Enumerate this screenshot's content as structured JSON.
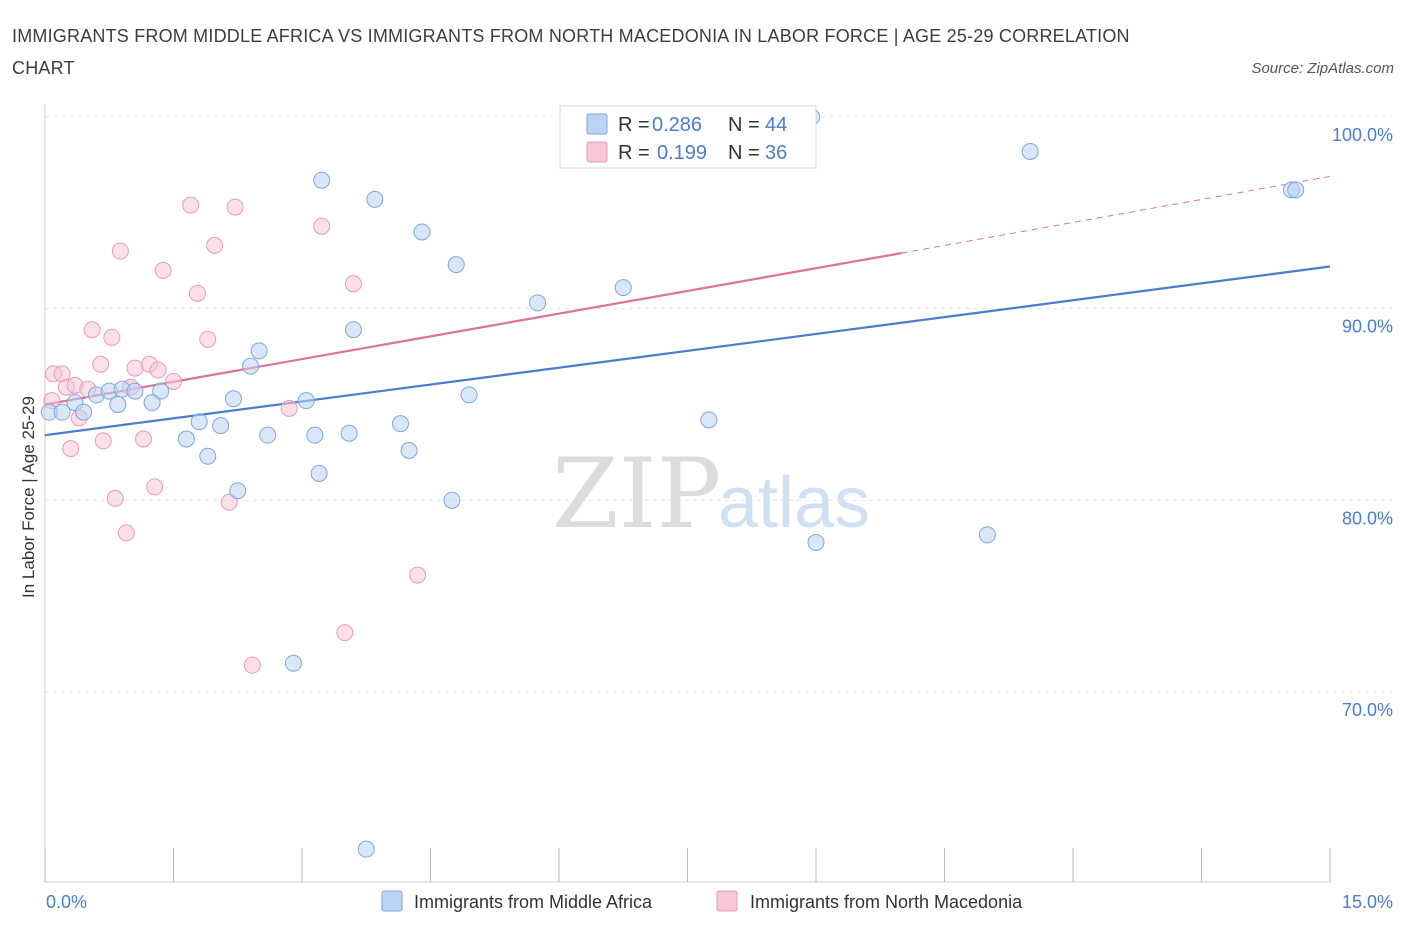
{
  "title": "IMMIGRANTS FROM MIDDLE AFRICA VS IMMIGRANTS FROM NORTH MACEDONIA IN LABOR FORCE | AGE 25-29 CORRELATION CHART",
  "source": "Source: ZipAtlas.com",
  "watermark": {
    "zip": "ZIP",
    "atlas": "atlas"
  },
  "colors": {
    "blue": "#4a7ccf",
    "blue_fill": "#bcd4f4",
    "pink": "#e0709a",
    "pink_fill": "#f7c7d6"
  },
  "legend_top": {
    "rows": [
      {
        "r_label": "R = ",
        "r_value": "0.286",
        "n_label": "N = ",
        "n_value": "44"
      },
      {
        "r_label": "R = ",
        "r_value": "0.199",
        "n_label": "N = ",
        "n_value": "36"
      }
    ]
  },
  "chart_data": {
    "type": "scatter",
    "title": "IMMIGRANTS FROM MIDDLE AFRICA VS IMMIGRANTS FROM NORTH MACEDONIA IN LABOR FORCE | AGE 25-29 CORRELATION CHART",
    "xlabel": "",
    "ylabel": "In Labor Force | Age 25-29",
    "xlim": [
      0,
      15
    ],
    "ylim": [
      60,
      100
    ],
    "x_tick_labels": [
      "0.0%",
      "15.0%"
    ],
    "y_ticks": [
      70,
      80,
      90,
      100
    ],
    "y_tick_labels": [
      "70.0%",
      "80.0%",
      "90.0%",
      "100.0%"
    ],
    "grid": true,
    "legend_position": "bottom",
    "series": [
      {
        "name": "Immigrants from Middle Africa",
        "color": "#4a7ccf",
        "R": 0.286,
        "N": 44,
        "trend": {
          "x0": 0,
          "y0": 83.4,
          "x1": 15,
          "y1": 92.2
        },
        "points": [
          [
            0.05,
            84.6
          ],
          [
            0.2,
            84.6
          ],
          [
            0.35,
            85.1
          ],
          [
            0.45,
            84.6
          ],
          [
            0.6,
            85.5
          ],
          [
            0.85,
            85.0
          ],
          [
            0.75,
            85.7
          ],
          [
            0.9,
            85.8
          ],
          [
            1.05,
            85.7
          ],
          [
            1.35,
            85.7
          ],
          [
            1.25,
            85.1
          ],
          [
            1.65,
            83.2
          ],
          [
            1.8,
            84.1
          ],
          [
            1.9,
            82.3
          ],
          [
            2.05,
            83.9
          ],
          [
            2.2,
            85.3
          ],
          [
            2.25,
            80.5
          ],
          [
            2.4,
            87.0
          ],
          [
            2.5,
            87.8
          ],
          [
            2.6,
            83.4
          ],
          [
            2.9,
            71.5
          ],
          [
            3.05,
            85.2
          ],
          [
            3.15,
            83.4
          ],
          [
            3.2,
            81.4
          ],
          [
            3.23,
            96.7
          ],
          [
            3.55,
            83.5
          ],
          [
            3.6,
            88.9
          ],
          [
            3.75,
            61.8
          ],
          [
            3.85,
            95.7
          ],
          [
            4.15,
            84.0
          ],
          [
            4.25,
            82.6
          ],
          [
            4.4,
            94.0
          ],
          [
            4.75,
            80.0
          ],
          [
            4.8,
            92.3
          ],
          [
            4.95,
            85.5
          ],
          [
            5.75,
            90.3
          ],
          [
            6.75,
            91.1
          ],
          [
            7.75,
            84.2
          ],
          [
            8.95,
            100.0
          ],
          [
            9.0,
            77.8
          ],
          [
            11.0,
            78.2
          ],
          [
            11.5,
            98.2
          ],
          [
            14.55,
            96.2
          ],
          [
            14.6,
            96.2
          ]
        ]
      },
      {
        "name": "Immigrants from North Macedonia",
        "color": "#e0709a",
        "R": 0.199,
        "N": 36,
        "trend": {
          "x0": 0,
          "y0": 85.0,
          "x1": 10.0,
          "y1": 92.9,
          "dashed_to_x": 15,
          "dashed_to_y": 96.9
        },
        "points": [
          [
            0.08,
            85.2
          ],
          [
            0.1,
            86.6
          ],
          [
            0.2,
            86.6
          ],
          [
            0.25,
            85.9
          ],
          [
            0.3,
            82.7
          ],
          [
            0.35,
            86.0
          ],
          [
            0.4,
            84.3
          ],
          [
            0.5,
            85.8
          ],
          [
            0.55,
            88.9
          ],
          [
            0.65,
            87.1
          ],
          [
            0.68,
            83.1
          ],
          [
            0.78,
            88.5
          ],
          [
            0.82,
            80.1
          ],
          [
            0.88,
            93.0
          ],
          [
            0.95,
            78.3
          ],
          [
            1.0,
            85.9
          ],
          [
            1.05,
            86.9
          ],
          [
            1.15,
            83.2
          ],
          [
            1.22,
            87.1
          ],
          [
            1.28,
            80.7
          ],
          [
            1.32,
            86.8
          ],
          [
            1.38,
            92.0
          ],
          [
            1.5,
            86.2
          ],
          [
            1.7,
            95.4
          ],
          [
            1.78,
            90.8
          ],
          [
            1.9,
            88.4
          ],
          [
            1.98,
            93.3
          ],
          [
            2.15,
            79.9
          ],
          [
            2.22,
            95.3
          ],
          [
            2.42,
            71.4
          ],
          [
            2.85,
            84.8
          ],
          [
            3.23,
            94.3
          ],
          [
            3.5,
            73.1
          ],
          [
            3.6,
            91.3
          ],
          [
            4.35,
            76.1
          ],
          [
            8.05,
            100.0
          ]
        ]
      }
    ]
  }
}
